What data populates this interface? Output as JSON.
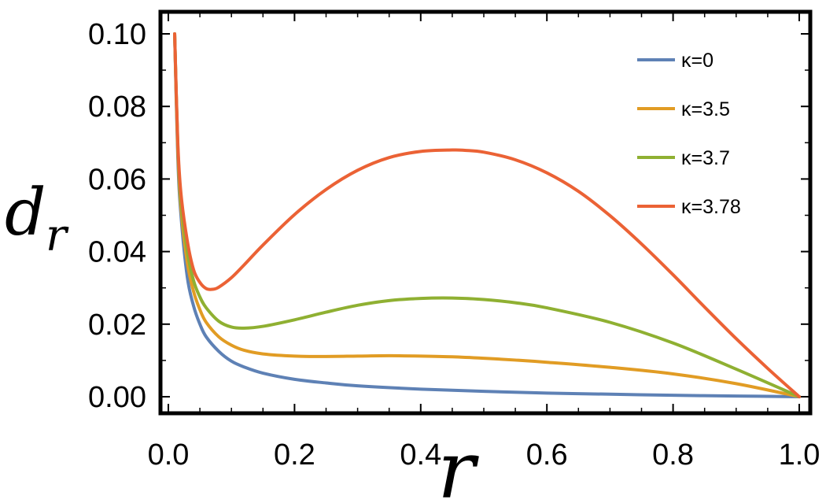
{
  "chart_data": {
    "type": "line",
    "xlabel": "r",
    "ylabel": "d",
    "ylabel_subscript": "r",
    "xlim": [
      0.0,
      1.0
    ],
    "ylim": [
      -0.005,
      0.105
    ],
    "xticks": [
      0.0,
      0.2,
      0.4,
      0.6,
      0.8,
      1.0
    ],
    "xtick_labels": [
      "0.0",
      "0.2",
      "0.4",
      "0.6",
      "0.8",
      "1.0"
    ],
    "yticks": [
      0.0,
      0.02,
      0.04,
      0.06,
      0.08,
      0.1
    ],
    "ytick_labels": [
      "0.00",
      "0.02",
      "0.04",
      "0.06",
      "0.08",
      "0.10"
    ],
    "grid": false,
    "legend_position": "top-right",
    "series": [
      {
        "name": "κ=0",
        "color": "#5e81b5",
        "x": [
          0.01,
          0.015,
          0.02,
          0.03,
          0.04,
          0.05,
          0.06,
          0.08,
          0.1,
          0.12,
          0.15,
          0.2,
          0.25,
          0.3,
          0.4,
          0.5,
          0.6,
          0.7,
          0.8,
          0.9,
          1.0
        ],
        "y": [
          0.1,
          0.066,
          0.05,
          0.033,
          0.025,
          0.02,
          0.0165,
          0.0125,
          0.0098,
          0.0082,
          0.0065,
          0.0048,
          0.0038,
          0.003,
          0.0021,
          0.0015,
          0.001,
          0.0007,
          0.0004,
          0.0002,
          0.0
        ]
      },
      {
        "name": "κ=3.5",
        "color": "#e19c24",
        "x": [
          0.01,
          0.015,
          0.02,
          0.03,
          0.04,
          0.05,
          0.06,
          0.08,
          0.1,
          0.12,
          0.15,
          0.2,
          0.25,
          0.3,
          0.35,
          0.4,
          0.45,
          0.5,
          0.55,
          0.6,
          0.7,
          0.8,
          0.9,
          1.0
        ],
        "y": [
          0.1,
          0.068,
          0.052,
          0.037,
          0.029,
          0.024,
          0.0205,
          0.0165,
          0.0142,
          0.0128,
          0.0118,
          0.0112,
          0.0111,
          0.0112,
          0.0113,
          0.0112,
          0.011,
          0.0106,
          0.0101,
          0.0095,
          0.0081,
          0.0063,
          0.0036,
          0.0
        ]
      },
      {
        "name": "κ=3.7",
        "color": "#8fb032",
        "x": [
          0.01,
          0.015,
          0.02,
          0.03,
          0.04,
          0.05,
          0.06,
          0.08,
          0.1,
          0.12,
          0.15,
          0.2,
          0.25,
          0.3,
          0.35,
          0.4,
          0.45,
          0.5,
          0.55,
          0.6,
          0.7,
          0.8,
          0.9,
          1.0
        ],
        "y": [
          0.1,
          0.069,
          0.054,
          0.04,
          0.032,
          0.0275,
          0.0245,
          0.0208,
          0.0192,
          0.0189,
          0.0194,
          0.0212,
          0.0233,
          0.0252,
          0.0265,
          0.0271,
          0.0272,
          0.0268,
          0.0259,
          0.0245,
          0.0205,
          0.0148,
          0.0076,
          0.0
        ]
      },
      {
        "name": "κ=3.78",
        "color": "#eb6235",
        "x": [
          0.01,
          0.015,
          0.02,
          0.03,
          0.04,
          0.05,
          0.06,
          0.07,
          0.08,
          0.1,
          0.12,
          0.15,
          0.2,
          0.25,
          0.3,
          0.35,
          0.4,
          0.45,
          0.47,
          0.5,
          0.55,
          0.6,
          0.65,
          0.7,
          0.75,
          0.8,
          0.85,
          0.9,
          0.95,
          1.0
        ],
        "y": [
          0.1,
          0.07,
          0.056,
          0.043,
          0.035,
          0.0315,
          0.0298,
          0.0296,
          0.0302,
          0.0328,
          0.0363,
          0.0418,
          0.0502,
          0.0571,
          0.0624,
          0.0659,
          0.0676,
          0.068,
          0.0679,
          0.0674,
          0.0653,
          0.0617,
          0.0566,
          0.0499,
          0.0421,
          0.0336,
          0.0247,
          0.016,
          0.0078,
          0.0
        ]
      }
    ]
  }
}
